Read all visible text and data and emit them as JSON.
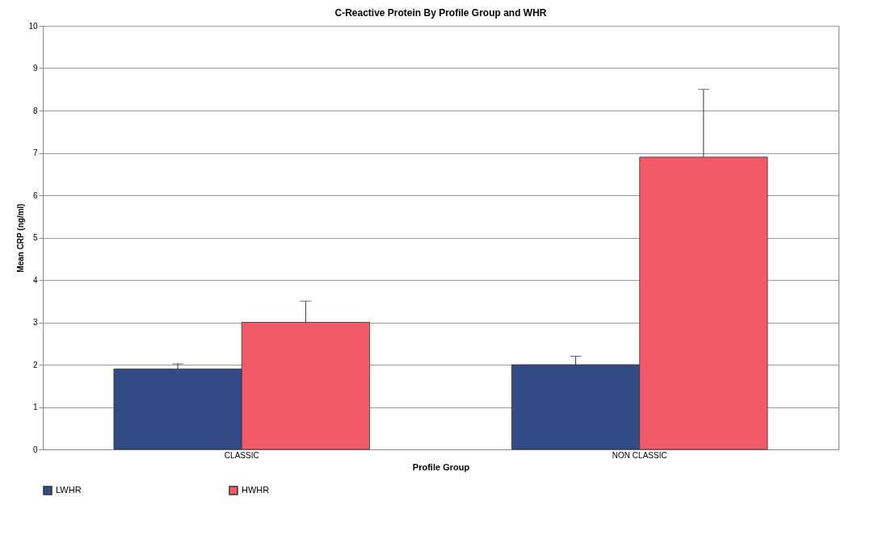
{
  "chart_data": {
    "type": "bar",
    "title": "C-Reactive Protein By Profile Group and WHR",
    "xlabel": "Profile Group",
    "ylabel": "Mean CRP (ng/ml)",
    "categories": [
      "CLASSIC",
      "NON CLASSIC"
    ],
    "series": [
      {
        "name": "LWHR",
        "color": "#334a87",
        "values": [
          1.9,
          2.0
        ],
        "errors": [
          [
            1.9,
            2.02
          ],
          [
            2.0,
            2.2
          ]
        ]
      },
      {
        "name": "HWHR",
        "color": "#f25a6a",
        "values": [
          3.0,
          6.9
        ],
        "errors": [
          [
            3.0,
            3.5
          ],
          [
            6.9,
            8.5
          ]
        ]
      }
    ],
    "ylim": [
      0,
      10
    ],
    "yticks": [
      0,
      1,
      2,
      3,
      4,
      5,
      6,
      7,
      8,
      9,
      10
    ],
    "grid": "y",
    "legend": "bottom"
  }
}
